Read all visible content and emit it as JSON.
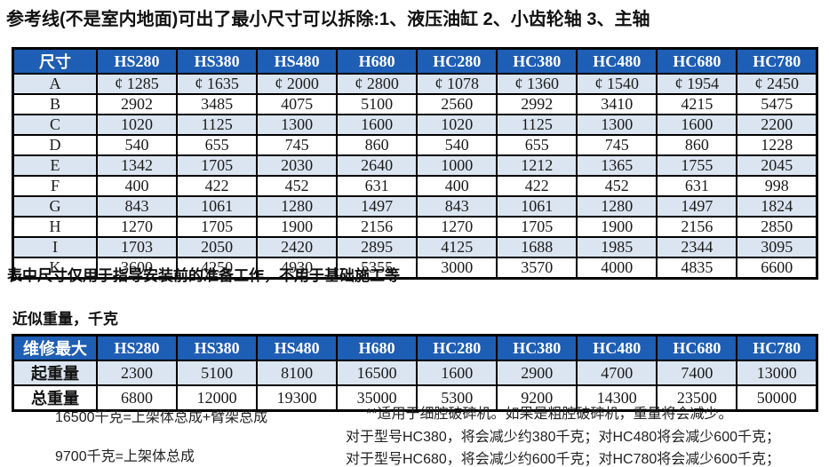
{
  "title": "参考线(不是室内地面)可出了最小尺寸可以拆除:1、液压油缸 2、小齿轮轴 3、主轴",
  "dimensions_table": {
    "header": [
      "尺寸",
      "HS280",
      "HS380",
      "HS480",
      "H680",
      "HC280",
      "HC380",
      "HC480",
      "HC680",
      "HC780"
    ],
    "rows": [
      {
        "label": "A",
        "values": [
          "¢ 1285",
          "¢ 1635",
          "¢ 2000",
          "¢ 2800",
          "¢ 1078",
          "¢ 1360",
          "¢ 1540",
          "¢ 1954",
          "¢ 2450"
        ]
      },
      {
        "label": "B",
        "values": [
          "2902",
          "3485",
          "4075",
          "5100",
          "2560",
          "2992",
          "3410",
          "4215",
          "5475"
        ]
      },
      {
        "label": "C",
        "values": [
          "1020",
          "1125",
          "1300",
          "1600",
          "1020",
          "1125",
          "1300",
          "1600",
          "2200"
        ]
      },
      {
        "label": "D",
        "values": [
          "540",
          "655",
          "745",
          "860",
          "540",
          "655",
          "745",
          "860",
          "1228"
        ]
      },
      {
        "label": "E",
        "values": [
          "1342",
          "1705",
          "2030",
          "2640",
          "1000",
          "1212",
          "1365",
          "1755",
          "2045"
        ]
      },
      {
        "label": "F",
        "values": [
          "400",
          "422",
          "452",
          "631",
          "400",
          "422",
          "452",
          "631",
          "998"
        ]
      },
      {
        "label": "G",
        "values": [
          "843",
          "1061",
          "1280",
          "1497",
          "843",
          "1061",
          "1280",
          "1497",
          "1824"
        ]
      },
      {
        "label": "H",
        "values": [
          "1270",
          "1705",
          "1900",
          "2156",
          "1270",
          "1705",
          "1900",
          "2156",
          "2850"
        ]
      },
      {
        "label": "I",
        "values": [
          "1703",
          "2050",
          "2420",
          "2895",
          "4125",
          "1688",
          "1985",
          "2344",
          "3095"
        ]
      },
      {
        "label": "K",
        "values": [
          "3600",
          "4250",
          "4930",
          "5355",
          "3000",
          "3570",
          "4000",
          "4835",
          "6600"
        ]
      }
    ]
  },
  "note": "表中尺寸仅用于指导安装前的准备工作，不用于基础施工等",
  "weights_heading": "近似重量，千克",
  "weights_table": {
    "header": [
      "维修最大",
      "HS280",
      "HS380",
      "HS480",
      "H680",
      "HC280",
      "HC380",
      "HC480",
      "HC680",
      "HC780"
    ],
    "rows": [
      {
        "label": "起重量",
        "values": [
          "2300",
          "5100",
          "8100",
          "16500",
          "1600",
          "2900",
          "4700",
          "7400",
          "13000"
        ]
      },
      {
        "label": "总重量",
        "values": [
          "6800",
          "12000",
          "19300",
          "35000",
          "5300",
          "9200",
          "14300",
          "23500",
          "50000"
        ]
      }
    ]
  },
  "footnotes": {
    "left": [
      "16500千克=上架体总成+臂架总成",
      "9700千克=上架体总成"
    ],
    "right": [
      "**适用于细腔破碎机。如果是粗腔破碎机，重量将会减少。",
      "对于型号HC380，将会减少约380千克；对HC480将会减少600千克；",
      "对于型号HC680，将会减少约600千克；对HC780将会减少600千克；"
    ]
  },
  "colors": {
    "header_bg": "#1e5eb4",
    "header_text": "#ffffff",
    "row_alt_bg": "#dbe5f1",
    "row_bg": "#ffffff",
    "border": "#000000"
  }
}
